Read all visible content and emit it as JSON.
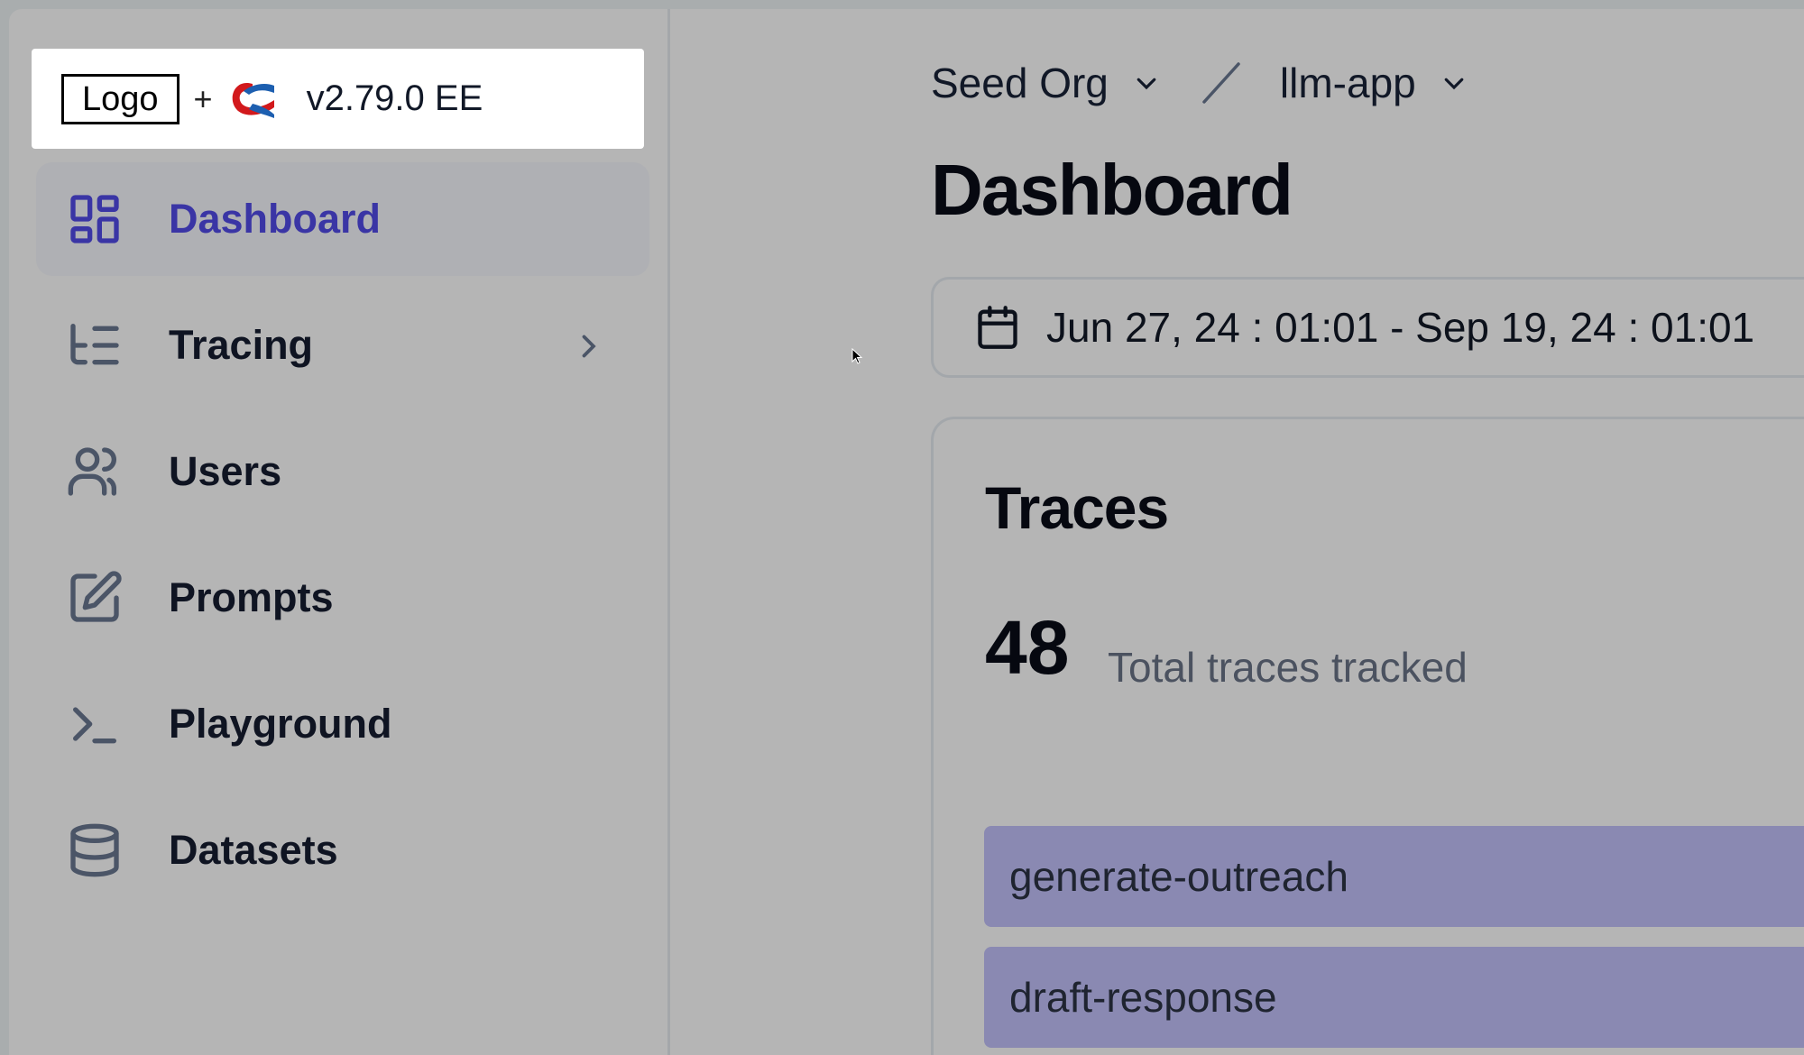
{
  "brand": {
    "logo_text": "Logo",
    "plus": "+",
    "version": "v2.79.0 EE"
  },
  "sidebar": {
    "items": [
      {
        "label": "Dashboard",
        "icon": "layout-grid-icon",
        "active": true
      },
      {
        "label": "Tracing",
        "icon": "list-tree-icon",
        "has_submenu": true
      },
      {
        "label": "Users",
        "icon": "users-icon"
      },
      {
        "label": "Prompts",
        "icon": "edit-icon"
      },
      {
        "label": "Playground",
        "icon": "terminal-icon"
      },
      {
        "label": "Datasets",
        "icon": "database-icon"
      }
    ]
  },
  "header": {
    "org": "Seed Org",
    "separator": "/",
    "project": "llm-app",
    "title": "Dashboard"
  },
  "date_range": {
    "value": "Jun 27, 24 : 01:01 - Sep 19, 24 : 01:01"
  },
  "traces_card": {
    "title": "Traces",
    "count": "48",
    "count_label": "Total traces tracked",
    "bars": [
      {
        "label": "generate-outreach"
      },
      {
        "label": "draft-response"
      }
    ]
  },
  "colors": {
    "accent": "#3a35a5",
    "bar": "#8a89b2",
    "overlay": "#b5b5b5"
  }
}
